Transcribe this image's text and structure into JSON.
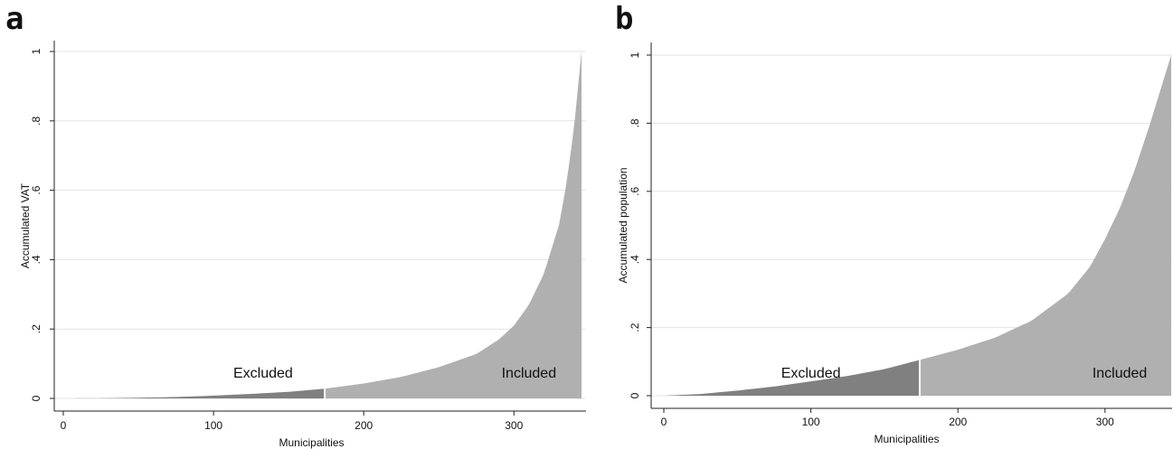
{
  "panels": {
    "a_label": "a",
    "b_label": "b"
  },
  "chart_data": [
    {
      "type": "area",
      "panel": "a",
      "xlabel": "Municipalities",
      "ylabel": "Accumulated VAT",
      "xlim": [
        0,
        345
      ],
      "ylim": [
        0,
        1
      ],
      "xticks": [
        0,
        100,
        200,
        300
      ],
      "yticks": [
        0,
        0.2,
        0.4,
        0.6,
        0.8,
        1
      ],
      "xtick_labels": [
        "0",
        "100",
        "200",
        "300"
      ],
      "ytick_labels": [
        "0",
        ".2",
        ".4",
        ".6",
        ".8",
        "1"
      ],
      "grid": true,
      "cutoff_x": 174,
      "annotations": {
        "excluded": "Excluded",
        "included": "Included"
      },
      "series": [
        {
          "x": [
            0,
            25,
            50,
            75,
            100,
            125,
            150,
            174,
            200,
            225,
            250,
            275,
            290,
            300,
            310,
            320,
            330,
            335,
            340,
            345
          ],
          "y": [
            0,
            0.0005,
            0.002,
            0.004,
            0.008,
            0.013,
            0.019,
            0.028,
            0.043,
            0.062,
            0.09,
            0.128,
            0.17,
            0.21,
            0.27,
            0.36,
            0.5,
            0.62,
            0.78,
            1.0
          ]
        }
      ],
      "colors": {
        "excluded": "#808080",
        "included": "#b0b0b0"
      }
    },
    {
      "type": "area",
      "panel": "b",
      "xlabel": "Municipalities",
      "ylabel": "Accumulated population",
      "xlim": [
        0,
        345
      ],
      "ylim": [
        0,
        1
      ],
      "xticks": [
        0,
        100,
        200,
        300
      ],
      "yticks": [
        0,
        0.2,
        0.4,
        0.6,
        0.8,
        1
      ],
      "xtick_labels": [
        "0",
        "100",
        "200",
        "300"
      ],
      "ytick_labels": [
        "0",
        ".2",
        ".4",
        ".6",
        ".8",
        "1"
      ],
      "grid": true,
      "cutoff_x": 174,
      "annotations": {
        "excluded": "Excluded",
        "included": "Included"
      },
      "series": [
        {
          "x": [
            0,
            25,
            50,
            75,
            100,
            125,
            150,
            174,
            200,
            225,
            250,
            275,
            290,
            300,
            310,
            320,
            330,
            335,
            340,
            345
          ],
          "y": [
            0,
            0.005,
            0.015,
            0.027,
            0.042,
            0.058,
            0.078,
            0.105,
            0.135,
            0.17,
            0.22,
            0.3,
            0.38,
            0.46,
            0.55,
            0.66,
            0.79,
            0.86,
            0.93,
            1.0
          ]
        }
      ],
      "colors": {
        "excluded": "#808080",
        "included": "#b0b0b0"
      }
    }
  ]
}
